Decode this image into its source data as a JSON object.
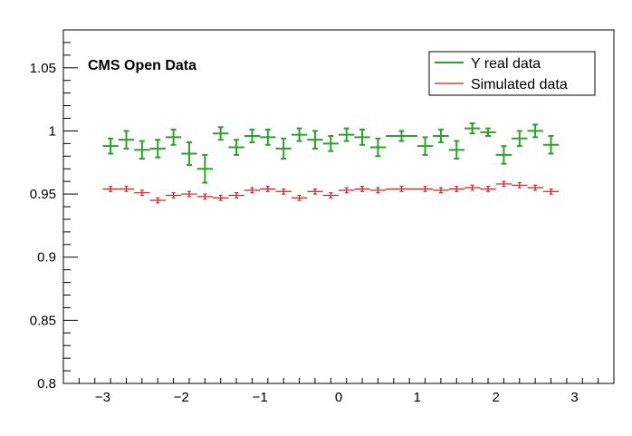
{
  "chart_data": {
    "type": "scatter",
    "title": "",
    "annotation": "CMS Open Data",
    "xlabel": "",
    "ylabel": "",
    "xlim": [
      -3.5,
      3.5
    ],
    "ylim": [
      0.8,
      1.08
    ],
    "x_ticks": [
      -3,
      -2,
      -1,
      0,
      1,
      2,
      3
    ],
    "x_tick_labels": [
      "−3",
      "−2",
      "−1",
      "0",
      "1",
      "2",
      "3"
    ],
    "y_ticks": [
      0.8,
      0.85,
      0.9,
      0.95,
      1.0,
      1.05
    ],
    "y_tick_labels": [
      "0.8",
      "0.85",
      "0.9",
      "0.95",
      "1",
      "1.05"
    ],
    "grid": false,
    "legend_position": "top-right",
    "series": [
      {
        "name": "Υ real data",
        "color": "#2ca02c",
        "style": "markers-with-errorbars",
        "x": [
          -2.9,
          -2.7,
          -2.5,
          -2.3,
          -2.1,
          -1.9,
          -1.7,
          -1.5,
          -1.3,
          -1.1,
          -0.9,
          -0.7,
          -0.5,
          -0.3,
          -0.1,
          0.1,
          0.3,
          0.5,
          0.8,
          1.1,
          1.3,
          1.5,
          1.7,
          1.9,
          2.1,
          2.3,
          2.5,
          2.7
        ],
        "y": [
          0.988,
          0.993,
          0.985,
          0.986,
          0.995,
          0.982,
          0.97,
          0.998,
          0.987,
          0.996,
          0.995,
          0.986,
          0.997,
          0.993,
          0.99,
          0.997,
          0.995,
          0.987,
          0.996,
          0.988,
          0.996,
          0.985,
          1.002,
          0.999,
          0.981,
          0.994,
          1.0,
          0.989
        ],
        "xerr": [
          0.1,
          0.1,
          0.1,
          0.1,
          0.1,
          0.1,
          0.1,
          0.1,
          0.1,
          0.1,
          0.1,
          0.1,
          0.1,
          0.1,
          0.1,
          0.1,
          0.1,
          0.1,
          0.2,
          0.1,
          0.1,
          0.1,
          0.1,
          0.1,
          0.1,
          0.1,
          0.1,
          0.1
        ],
        "yerr": [
          0.006,
          0.007,
          0.007,
          0.007,
          0.006,
          0.009,
          0.011,
          0.005,
          0.006,
          0.005,
          0.006,
          0.008,
          0.005,
          0.007,
          0.006,
          0.005,
          0.006,
          0.007,
          0.004,
          0.007,
          0.005,
          0.007,
          0.004,
          0.003,
          0.007,
          0.006,
          0.005,
          0.007
        ]
      },
      {
        "name": "Simulated data",
        "color": "#cc2222",
        "style": "markers-with-errorbars",
        "x": [
          -2.9,
          -2.7,
          -2.5,
          -2.3,
          -2.1,
          -1.9,
          -1.7,
          -1.5,
          -1.3,
          -1.1,
          -0.9,
          -0.7,
          -0.5,
          -0.3,
          -0.1,
          0.1,
          0.3,
          0.5,
          0.8,
          1.1,
          1.3,
          1.5,
          1.7,
          1.9,
          2.1,
          2.3,
          2.5,
          2.7
        ],
        "y": [
          0.954,
          0.954,
          0.951,
          0.945,
          0.949,
          0.95,
          0.948,
          0.947,
          0.949,
          0.953,
          0.954,
          0.952,
          0.947,
          0.952,
          0.949,
          0.953,
          0.954,
          0.953,
          0.954,
          0.954,
          0.953,
          0.954,
          0.955,
          0.954,
          0.958,
          0.957,
          0.955,
          0.952
        ],
        "xerr": [
          0.1,
          0.1,
          0.1,
          0.1,
          0.1,
          0.1,
          0.1,
          0.1,
          0.1,
          0.1,
          0.1,
          0.1,
          0.1,
          0.1,
          0.1,
          0.1,
          0.1,
          0.1,
          0.2,
          0.1,
          0.1,
          0.1,
          0.1,
          0.1,
          0.1,
          0.1,
          0.1,
          0.1
        ],
        "yerr": [
          0.002,
          0.002,
          0.002,
          0.002,
          0.002,
          0.002,
          0.002,
          0.002,
          0.002,
          0.002,
          0.002,
          0.002,
          0.002,
          0.002,
          0.002,
          0.002,
          0.002,
          0.002,
          0.002,
          0.002,
          0.002,
          0.002,
          0.002,
          0.002,
          0.002,
          0.002,
          0.002,
          0.002
        ]
      }
    ]
  }
}
